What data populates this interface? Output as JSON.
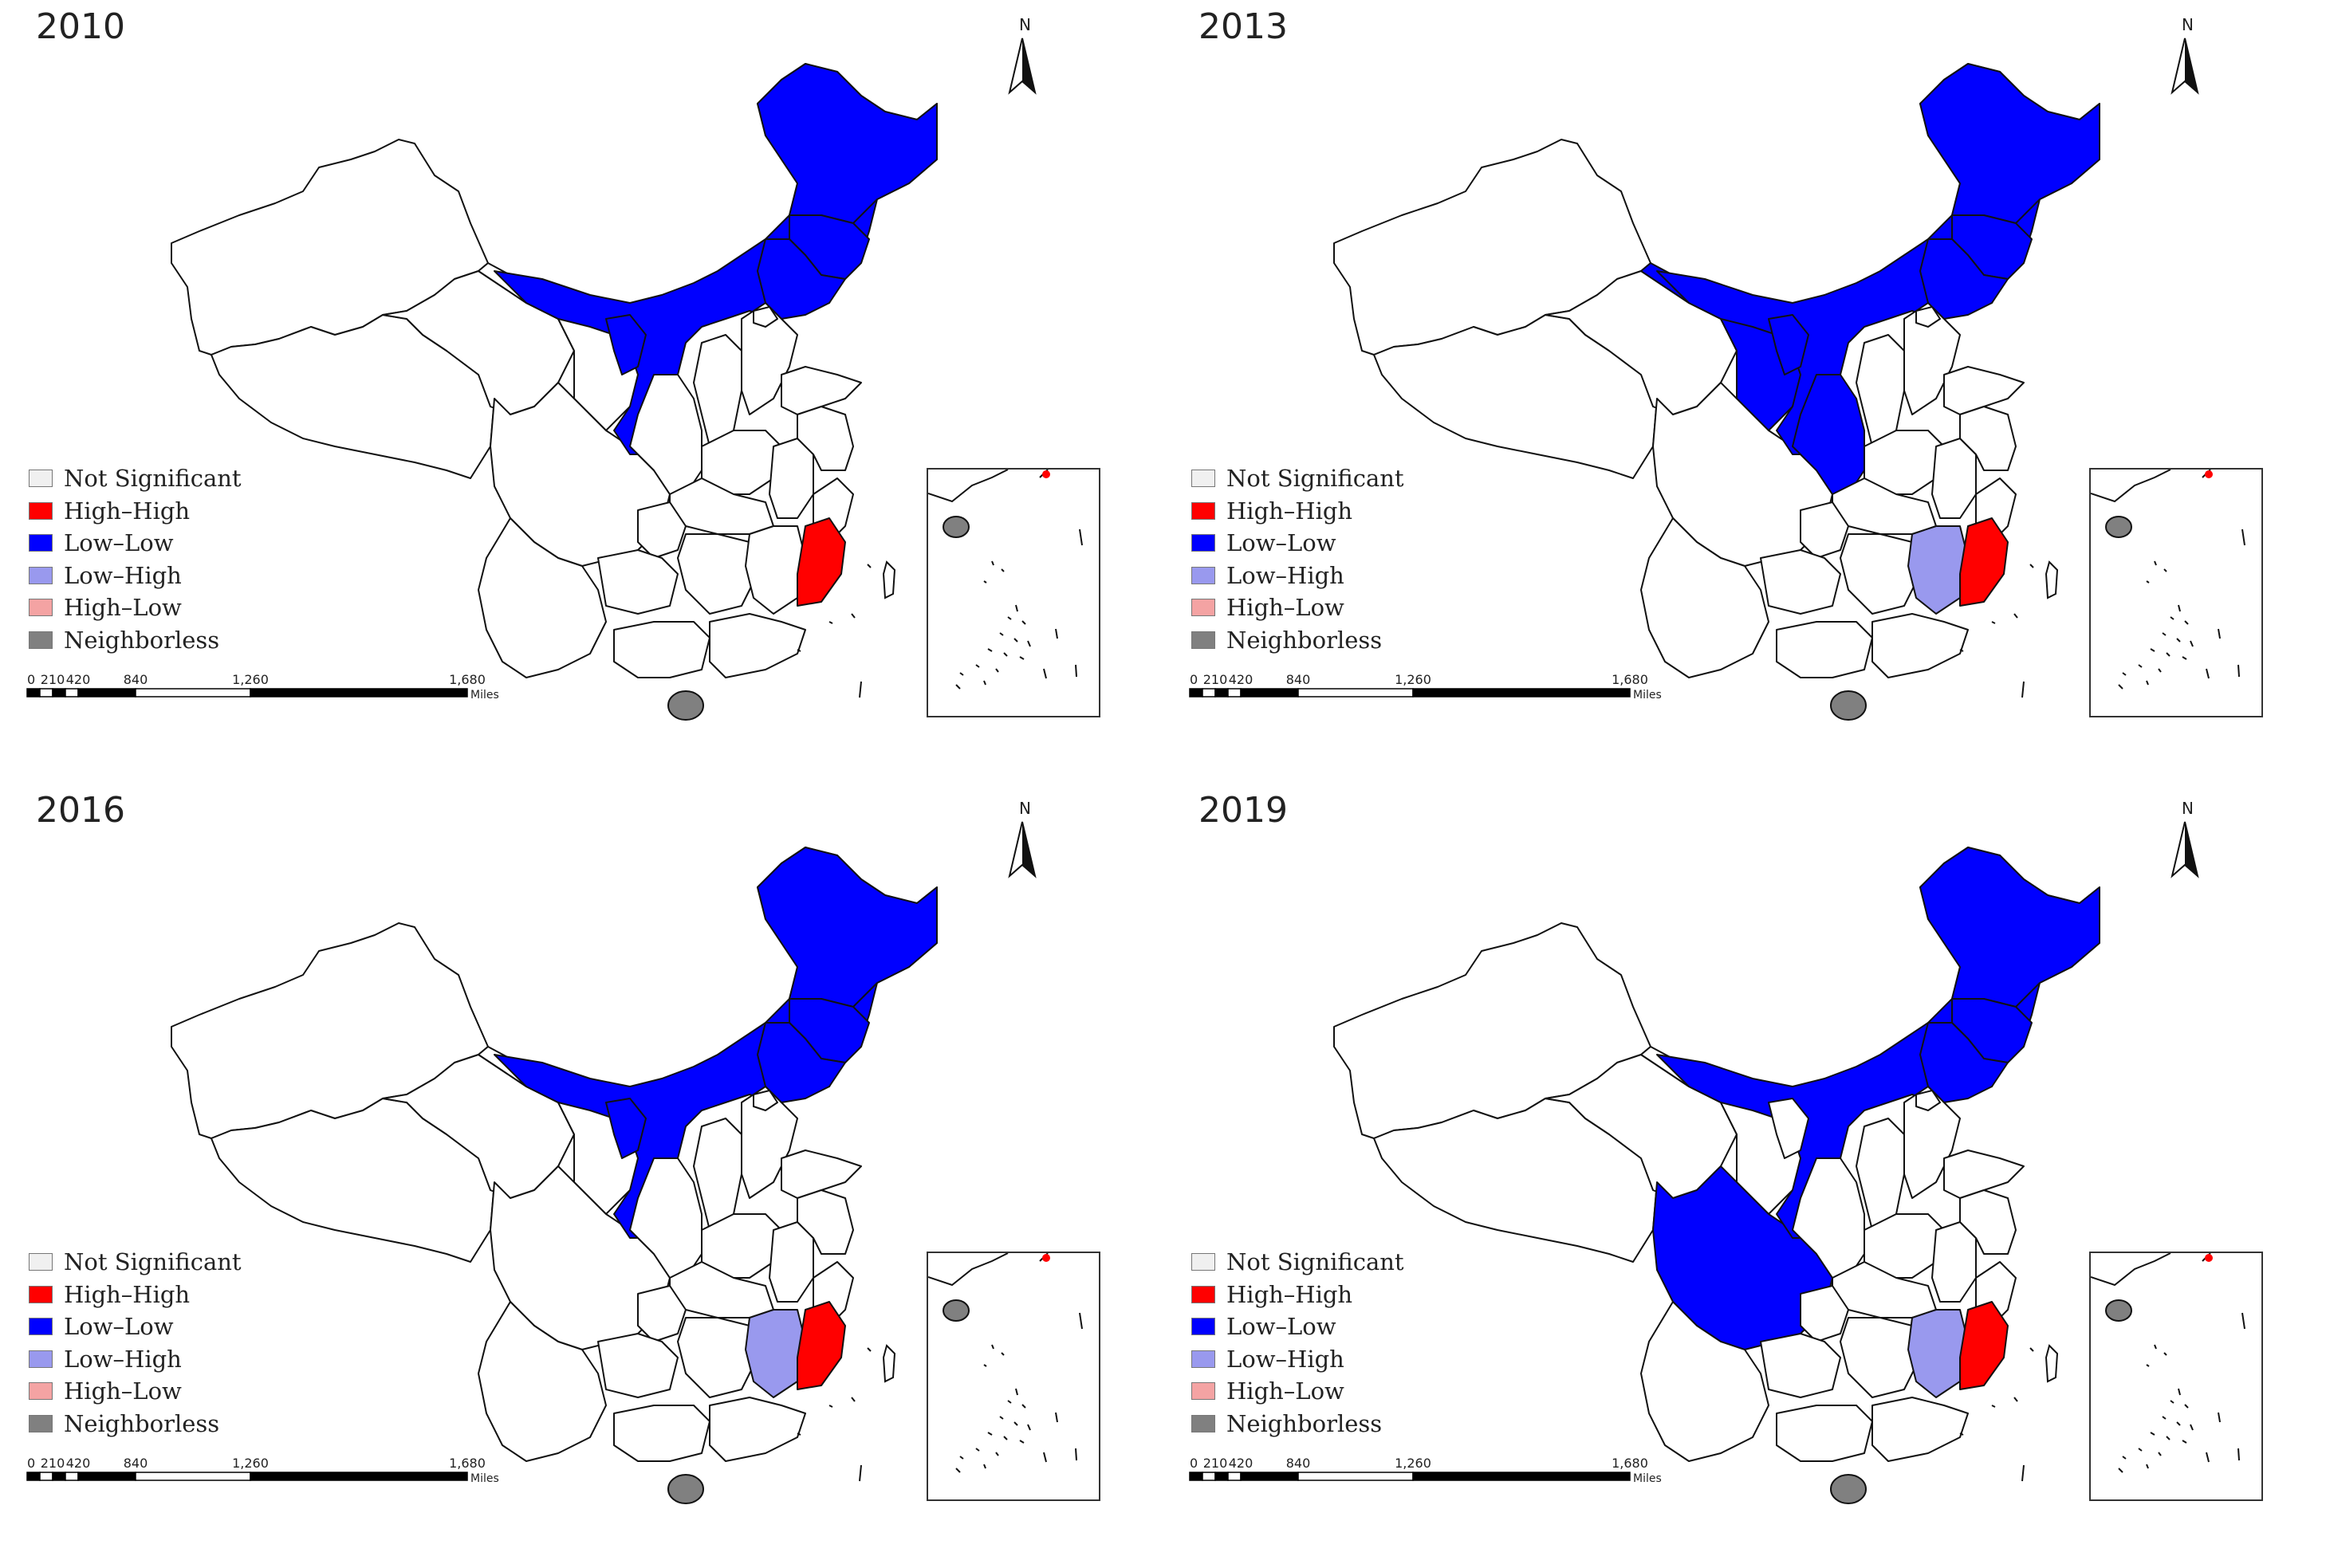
{
  "panels": [
    {
      "year": "2010"
    },
    {
      "year": "2013"
    },
    {
      "year": "2016"
    },
    {
      "year": "2019"
    }
  ],
  "north_label": "N",
  "legend": [
    {
      "label": "Not Significant",
      "color": "#f0f0f0"
    },
    {
      "label": "High–High",
      "color": "#ff0000"
    },
    {
      "label": "Low–Low",
      "color": "#0000ff"
    },
    {
      "label": "Low–High",
      "color": "#9999ee"
    },
    {
      "label": "High–Low",
      "color": "#f4a3a3"
    },
    {
      "label": "Neighborless",
      "color": "#808080"
    }
  ],
  "scale": {
    "ticks": [
      "0",
      "210",
      "420",
      "840",
      "1,260",
      "1,680"
    ],
    "unit": "Miles"
  },
  "colors": {
    "not_significant": "#ffffff",
    "high_high": "#ff0000",
    "low_low": "#0000ff",
    "low_high": "#9999ee",
    "neighborless": "#808080"
  }
}
